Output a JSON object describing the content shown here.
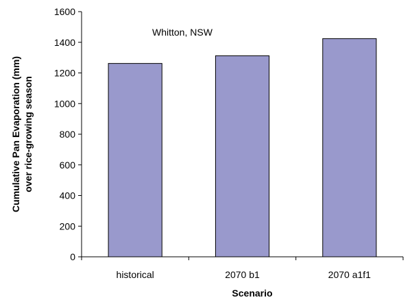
{
  "chart_data": {
    "type": "bar",
    "title": "",
    "annotation": "Whitton, NSW",
    "xlabel": "Scenario",
    "ylabel_line1": "Cumulative Pan Evaporation (mm)",
    "ylabel_line2": "over rice-growing season",
    "categories": [
      "historical",
      "2070 b1",
      "2070 a1f1"
    ],
    "values": [
      1262,
      1312,
      1424
    ],
    "ylim": [
      0,
      1600
    ],
    "yticks": [
      0,
      200,
      400,
      600,
      800,
      1000,
      1200,
      1400,
      1600
    ],
    "grid": false,
    "legend": "none",
    "bar_color": "#9999cc",
    "bar_stroke": "#000000"
  }
}
